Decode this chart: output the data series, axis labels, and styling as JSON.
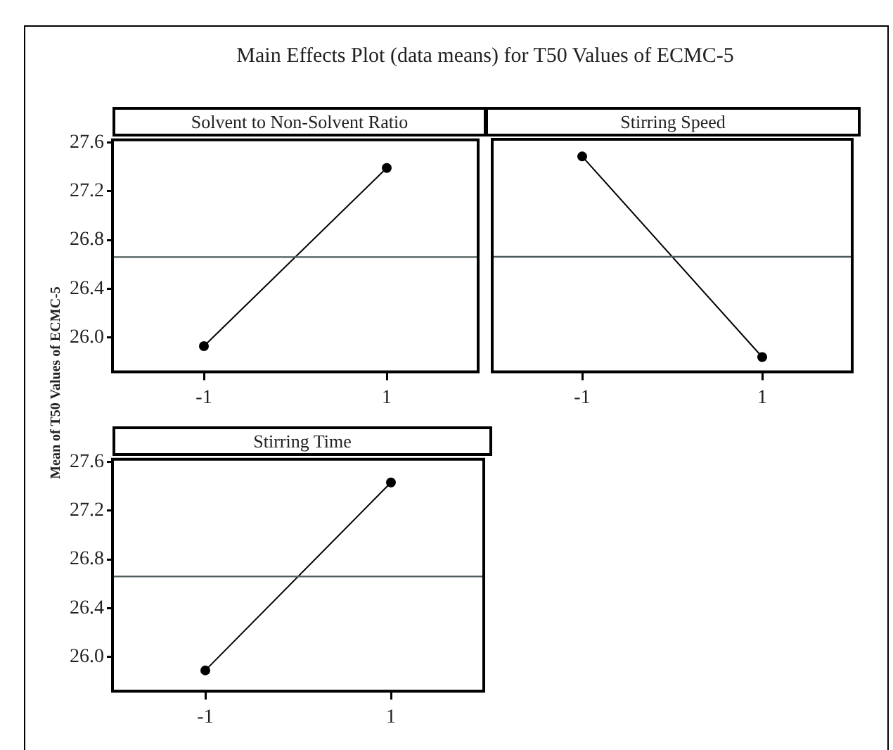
{
  "chart_data": [
    {
      "type": "line",
      "title": "Main Effects Plot (data means) for T50 Values of ECMC-5",
      "subtitle": "Solvent to Non-Solvent Ratio",
      "ylabel": "Mean of T50 Values of ECMC-5",
      "categories": [
        "-1",
        "1"
      ],
      "series": [
        {
          "color": "#000000",
          "values": [
            25.93,
            27.39
          ]
        }
      ],
      "ylim": [
        25.72,
        27.62
      ],
      "yticks": [
        {
          "value": 26,
          "label": "26.0"
        },
        26.4,
        26.8,
        27.2,
        27.6
      ],
      "ref_lines": [
        {
          "axis": "y",
          "value": 26.66,
          "color": "#4a5a5a"
        }
      ],
      "marker": "circle",
      "legend": false,
      "grid": false
    },
    {
      "type": "line",
      "subtitle": "Stirring Speed",
      "categories": [
        "-1",
        "1"
      ],
      "series": [
        {
          "color": "#000000",
          "values": [
            27.48,
            25.84
          ]
        }
      ],
      "ylim": [
        25.72,
        27.62
      ],
      "tick_labels": "x",
      "ref_lines": [
        {
          "axis": "y",
          "value": 26.66,
          "color": "#4a5a5a"
        }
      ],
      "marker": "circle",
      "legend": false,
      "grid": false
    },
    {
      "type": "line",
      "subtitle": "Stirring Time",
      "categories": [
        "-1",
        "1"
      ],
      "series": [
        {
          "color": "#000000",
          "values": [
            25.89,
            27.43
          ]
        }
      ],
      "ylim": [
        25.72,
        27.62
      ],
      "yticks": [
        {
          "value": 26,
          "label": "26.0"
        },
        26.4,
        26.8,
        27.2,
        27.6
      ],
      "ref_lines": [
        {
          "axis": "y",
          "value": 26.66,
          "color": "#4a5a5a"
        }
      ],
      "marker": "circle",
      "legend": false,
      "grid": false
    }
  ]
}
